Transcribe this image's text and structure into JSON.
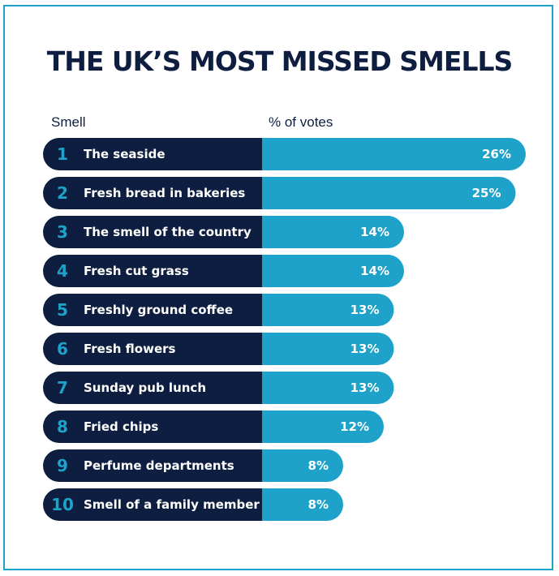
{
  "title": "THE UK’S MOST MISSED SMELLS",
  "headers": {
    "smell": "Smell",
    "votes": "% of votes"
  },
  "colors": {
    "dark": "#0e1e40",
    "accent": "#1ea2c9",
    "border": "#1ea2c9"
  },
  "chart_data": {
    "type": "bar",
    "orientation": "horizontal",
    "ranks": [
      "1",
      "2",
      "3",
      "4",
      "5",
      "6",
      "7",
      "8",
      "9",
      "10"
    ],
    "categories": [
      "The seaside",
      "Fresh bread in bakeries",
      "The smell of the country",
      "Fresh cut grass",
      "Freshly ground coffee",
      "Fresh flowers",
      "Sunday pub lunch",
      "Fried chips",
      "Perfume departments",
      "Smell of a family member"
    ],
    "values": [
      26,
      25,
      14,
      14,
      13,
      13,
      13,
      12,
      8,
      8
    ],
    "value_labels": [
      "26%",
      "25%",
      "14%",
      "14%",
      "13%",
      "13%",
      "13%",
      "12%",
      "8%",
      "8%"
    ],
    "xlabel": "% of votes",
    "ylabel": "Smell",
    "grid": false,
    "legend": "none"
  }
}
